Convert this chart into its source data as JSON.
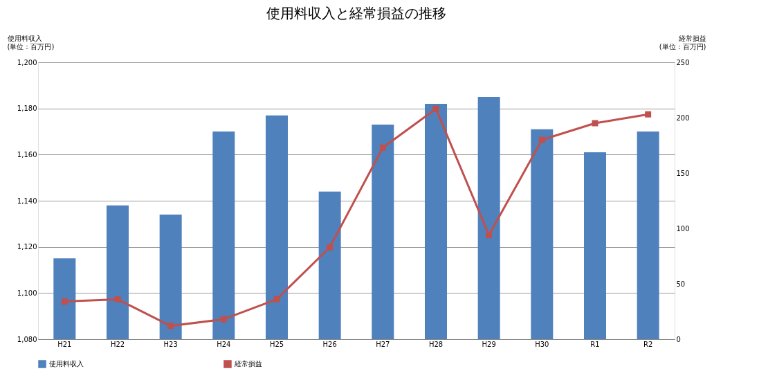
{
  "chart_data": {
    "type": "bar",
    "title": "使用料収入と経常損益の推移",
    "ylabel": "使用料収入\n(単位：百万円)",
    "y2label": "経常損益\n(単位：百万円)",
    "categories": [
      "H21",
      "H22",
      "H23",
      "H24",
      "H25",
      "H26",
      "H27",
      "H28",
      "H29",
      "H30",
      "R1",
      "R2"
    ],
    "series": [
      {
        "name": "使用料収入",
        "color": "#4f81bd",
        "values": [
          1115,
          1138,
          1134,
          1170,
          1177,
          1144,
          1173,
          1182,
          1185,
          1171,
          1161,
          1170
        ]
      },
      {
        "name": "経常損益",
        "type": "line",
        "axis": "y2",
        "color": "#c0504d",
        "marker": "square",
        "values": [
          34,
          36,
          12,
          18,
          36,
          83,
          173,
          208,
          94,
          180,
          195,
          203
        ]
      }
    ],
    "ylim": [
      1080,
      1200
    ],
    "yticks": [
      {
        "value": 1080,
        "label": "1,080"
      },
      {
        "value": 1100,
        "label": "1,100"
      },
      {
        "value": 1120,
        "label": "1,120"
      },
      {
        "value": 1140,
        "label": "1,140"
      },
      {
        "value": 1160,
        "label": "1,160"
      },
      {
        "value": 1180,
        "label": "1,180"
      },
      {
        "value": 1200,
        "label": "1,200"
      }
    ],
    "y2lim": [
      0,
      250
    ],
    "y2ticks": [
      0,
      50,
      100,
      150,
      200,
      250
    ],
    "grid": "y",
    "legend": "bottom"
  }
}
